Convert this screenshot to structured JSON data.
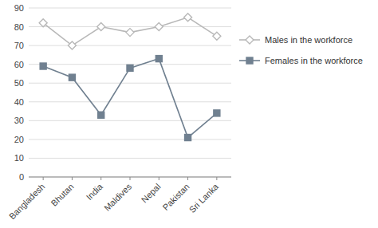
{
  "chart_data": {
    "type": "line",
    "categories": [
      "Bangladesh",
      "Bhutan",
      "India",
      "Maldives",
      "Nepal",
      "Pakistan",
      "Sri Lanka"
    ],
    "series": [
      {
        "name": "Males in the workforce",
        "color": "#b8b8b8",
        "marker": "diamond-open",
        "line_style": "solid",
        "values": [
          82,
          70,
          80,
          77,
          80,
          85,
          75
        ]
      },
      {
        "name": "Females in the workforce",
        "color": "#708090",
        "marker": "square",
        "line_style": "solid",
        "values": [
          59,
          53,
          33,
          58,
          63,
          21,
          34
        ]
      }
    ],
    "ylim": [
      0,
      90
    ],
    "yticks": [
      0,
      10,
      20,
      30,
      40,
      50,
      60,
      70,
      80,
      90
    ],
    "grid": true,
    "legend": "right"
  }
}
